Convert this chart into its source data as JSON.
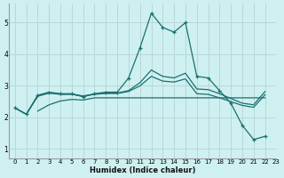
{
  "xlabel": "Humidex (Indice chaleur)",
  "background_color": "#cff0f0",
  "grid_color": "#b8d8d8",
  "line_color": "#1a7070",
  "xlim": [
    -0.5,
    23
  ],
  "ylim": [
    0.7,
    5.6
  ],
  "xticks": [
    0,
    1,
    2,
    3,
    4,
    5,
    6,
    7,
    8,
    9,
    10,
    11,
    12,
    13,
    14,
    15,
    16,
    17,
    18,
    19,
    20,
    21,
    22,
    23
  ],
  "yticks": [
    1,
    2,
    3,
    4,
    5
  ],
  "series": [
    {
      "x": [
        0,
        1,
        2,
        3,
        4,
        5,
        6,
        7,
        8,
        9,
        10,
        11,
        12,
        13,
        14,
        15,
        16,
        17,
        18,
        19,
        20,
        21,
        22
      ],
      "y": [
        2.3,
        2.1,
        2.7,
        2.8,
        2.75,
        2.75,
        2.65,
        2.75,
        2.8,
        2.8,
        3.25,
        4.2,
        5.3,
        4.85,
        4.7,
        5.0,
        3.3,
        3.25,
        2.85,
        2.45,
        1.75,
        1.3,
        1.4
      ],
      "marker": true
    },
    {
      "x": [
        0,
        1,
        2,
        3,
        4,
        5,
        6,
        7,
        8,
        9,
        10,
        11,
        12,
        13,
        14,
        15,
        16,
        17,
        18,
        19,
        20,
        21,
        22
      ],
      "y": [
        2.3,
        2.1,
        2.68,
        2.78,
        2.74,
        2.74,
        2.68,
        2.74,
        2.77,
        2.77,
        2.85,
        3.1,
        3.5,
        3.3,
        3.25,
        3.4,
        2.9,
        2.88,
        2.75,
        2.6,
        2.45,
        2.4,
        2.82
      ],
      "marker": false
    },
    {
      "x": [
        0,
        1,
        2,
        3,
        4,
        5,
        6,
        7,
        8,
        9,
        10,
        11,
        12,
        13,
        14,
        15,
        16,
        17,
        18,
        19,
        20,
        21,
        22
      ],
      "y": [
        2.3,
        2.1,
        2.67,
        2.77,
        2.73,
        2.73,
        2.67,
        2.73,
        2.76,
        2.76,
        2.82,
        3.0,
        3.3,
        3.15,
        3.12,
        3.22,
        2.75,
        2.73,
        2.62,
        2.5,
        2.38,
        2.32,
        2.72
      ],
      "marker": false
    },
    {
      "x": [
        2,
        3,
        4,
        5,
        6,
        7,
        8,
        9,
        10,
        11,
        12,
        13,
        14,
        15,
        16,
        17,
        18,
        19,
        20,
        21,
        22
      ],
      "y": [
        2.2,
        2.4,
        2.52,
        2.57,
        2.55,
        2.62,
        2.62,
        2.62,
        2.62,
        2.62,
        2.62,
        2.62,
        2.62,
        2.62,
        2.62,
        2.62,
        2.62,
        2.62,
        2.62,
        2.62,
        2.62
      ],
      "marker": false
    }
  ]
}
